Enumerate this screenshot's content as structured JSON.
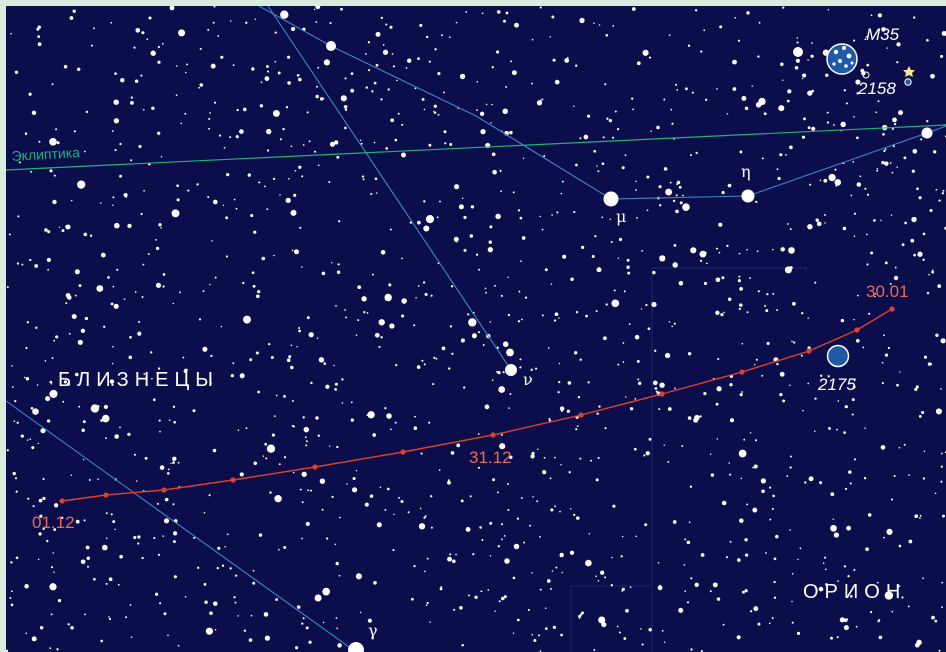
{
  "map": {
    "constellations": [
      "БЛИЗНЕЦЫ",
      "ОРИОН"
    ],
    "ecliptic_label": "Эклиптика",
    "stars": {
      "mu": "μ",
      "eta": "η",
      "nu": "ν",
      "gamma": "γ"
    },
    "deep_sky": {
      "cluster": "M35",
      "ngc_a": "2158",
      "ngc_b": "2175"
    },
    "track": {
      "dates": [
        "01.12",
        "31.12",
        "30.01"
      ]
    },
    "colors": {
      "sky": "#0b0e4a",
      "frame": "#d7ecda",
      "stars": "#ffffff",
      "constellation_lines": "#3d86c6",
      "ecliptic": "#22b07a",
      "track": "#e0402d",
      "date_labels": "#ea6a55",
      "nebula": "#1f5aa6"
    }
  }
}
